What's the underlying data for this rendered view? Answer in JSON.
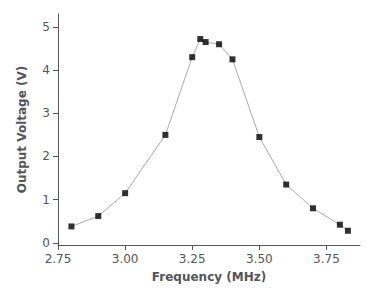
{
  "chart_data": {
    "type": "line",
    "xlabel": "Frequency (MHz)",
    "ylabel": "Output Voltage (V)",
    "x": [
      2.8,
      2.9,
      3.0,
      3.15,
      3.25,
      3.28,
      3.3,
      3.35,
      3.4,
      3.5,
      3.6,
      3.7,
      3.8,
      3.83
    ],
    "series": [
      {
        "type": "line",
        "color": "#aaaaaa",
        "values": [
          0.38,
          0.62,
          1.15,
          2.5,
          4.3,
          4.72,
          4.65,
          4.6,
          4.25,
          2.45,
          1.35,
          0.8,
          0.42,
          0.28
        ]
      },
      {
        "type": "scatter",
        "color": "#000000",
        "marker": "square",
        "values": [
          0.38,
          0.62,
          1.15,
          2.5,
          4.3,
          4.72,
          4.65,
          4.6,
          4.25,
          2.45,
          1.35,
          0.8,
          0.42,
          0.28
        ]
      }
    ],
    "xlim": [
      2.75,
      3.875
    ],
    "ylim": [
      -0.05,
      5.3
    ],
    "xticks": [
      2.75,
      {
        "value": 3.0,
        "label": "3.00"
      },
      3.25,
      {
        "value": 3.5,
        "label": "3.50"
      },
      3.75
    ],
    "yticks": [
      0,
      1,
      2,
      3,
      4,
      5
    ],
    "grid": false
  }
}
